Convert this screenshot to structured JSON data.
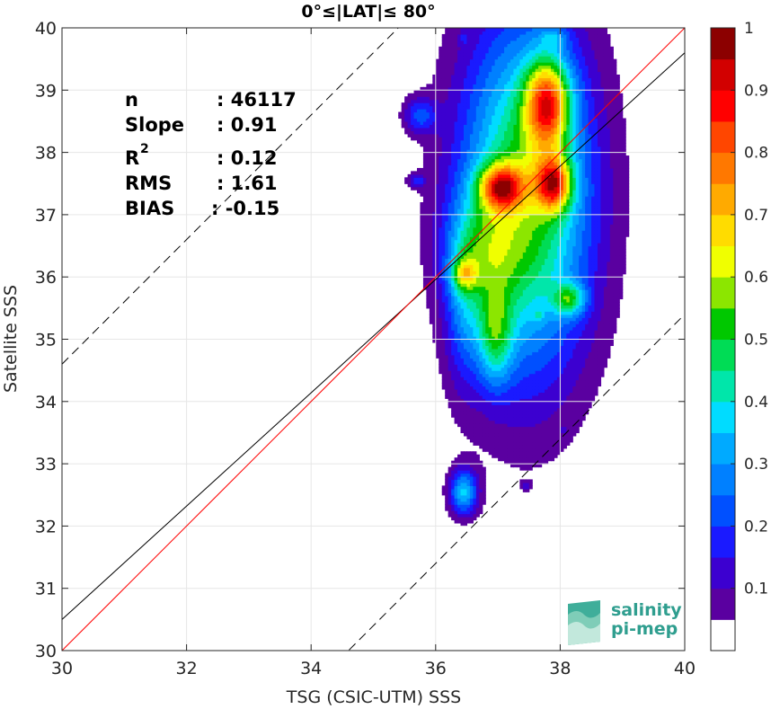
{
  "chart_data": {
    "type": "heatmap",
    "title": "0°≤|LAT|≤ 80°",
    "xlabel": "TSG (CSIC-UTM) SSS",
    "ylabel": "Satellite SSS",
    "xlim": [
      30,
      40
    ],
    "ylim": [
      30,
      40
    ],
    "xticks": [
      "30",
      "32",
      "34",
      "36",
      "38",
      "40"
    ],
    "yticks": [
      "30",
      "31",
      "32",
      "33",
      "34",
      "35",
      "36",
      "37",
      "38",
      "39",
      "40"
    ],
    "grid": true,
    "colorbar": {
      "range": [
        0,
        1
      ],
      "ticks": [
        "0.1",
        "0.2",
        "0.3",
        "0.4",
        "0.5",
        "0.6",
        "0.7",
        "0.8",
        "0.9",
        "1"
      ],
      "colors": [
        "#ffffff",
        "#5a00a0",
        "#3c00d0",
        "#1a1aff",
        "#0050ff",
        "#0080ff",
        "#00aaff",
        "#00dcff",
        "#00e6aa",
        "#00dc55",
        "#00c800",
        "#8ce600",
        "#f0ff00",
        "#ffdc00",
        "#ffaa00",
        "#ff7800",
        "#ff4600",
        "#ff0000",
        "#d20000",
        "#8c0000"
      ]
    },
    "density_blobs": [
      {
        "x": 37.45,
        "y": 37.3,
        "sx": 0.75,
        "sy": 2.0,
        "w": 0.55
      },
      {
        "x": 37.8,
        "y": 38.8,
        "sx": 0.25,
        "sy": 0.5,
        "w": 0.55
      },
      {
        "x": 37.9,
        "y": 37.5,
        "sx": 0.2,
        "sy": 0.3,
        "w": 0.5
      },
      {
        "x": 37.05,
        "y": 37.45,
        "sx": 0.25,
        "sy": 0.25,
        "w": 0.5
      },
      {
        "x": 36.75,
        "y": 36.4,
        "sx": 0.4,
        "sy": 0.6,
        "w": 0.22
      },
      {
        "x": 36.95,
        "y": 35.05,
        "sx": 0.2,
        "sy": 0.55,
        "w": 0.3
      },
      {
        "x": 36.45,
        "y": 35.5,
        "sx": 0.2,
        "sy": 0.9,
        "w": 0.15
      },
      {
        "x": 36.45,
        "y": 36.05,
        "sx": 0.15,
        "sy": 0.18,
        "w": 0.25
      },
      {
        "x": 37.9,
        "y": 39.85,
        "sx": 0.15,
        "sy": 0.1,
        "w": 0.12
      },
      {
        "x": 35.75,
        "y": 38.6,
        "sx": 0.18,
        "sy": 0.2,
        "w": 0.2
      },
      {
        "x": 35.7,
        "y": 37.55,
        "sx": 0.1,
        "sy": 0.08,
        "w": 0.15
      },
      {
        "x": 38.15,
        "y": 35.65,
        "sx": 0.18,
        "sy": 0.18,
        "w": 0.3
      },
      {
        "x": 36.45,
        "y": 32.55,
        "sx": 0.16,
        "sy": 0.26,
        "w": 0.35
      },
      {
        "x": 37.45,
        "y": 32.65,
        "sx": 0.06,
        "sy": 0.05,
        "w": 0.08
      },
      {
        "x": 38.05,
        "y": 33.55,
        "sx": 0.05,
        "sy": 0.05,
        "w": 0.08
      },
      {
        "x": 37.65,
        "y": 35.4,
        "sx": 0.06,
        "sy": 0.05,
        "w": 0.08
      },
      {
        "x": 36.45,
        "y": 39.85,
        "sx": 0.05,
        "sy": 0.08,
        "w": 0.08
      }
    ],
    "lines": {
      "identity": {
        "color": "#ff0000",
        "slope": 1,
        "intercept": 0
      },
      "fit": {
        "color": "#000000",
        "slope": 0.91,
        "x0": 30,
        "y0": 30.5
      },
      "bounds": {
        "color": "#000000",
        "style": "dashed",
        "offset": 4.6
      }
    },
    "stats": [
      {
        "label": "n",
        "value": ": 46117"
      },
      {
        "label": "Slope",
        "value": ": 0.91"
      },
      {
        "label": "R",
        "sup": "2",
        "value": ": 0.12"
      },
      {
        "label": "RMS",
        "value": ": 1.61"
      },
      {
        "label": "BIAS",
        "value": ": -0.15"
      }
    ]
  },
  "logo": {
    "line1": "salinity",
    "line2": "pi-mep"
  }
}
